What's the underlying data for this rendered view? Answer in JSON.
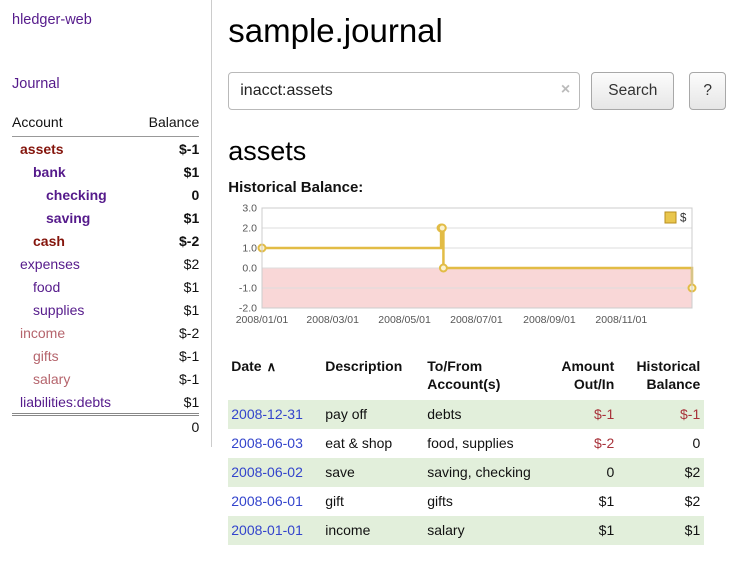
{
  "palette": {
    "link_purple": "#551a8b",
    "link_blue": "#3344cc",
    "negative_dark": "#84150c",
    "negative_soft": "#b5646c",
    "negative_register": "#a8323a",
    "row_green": "#e2efdb"
  },
  "header": {
    "app_title": "hledger-web"
  },
  "sidebar": {
    "nav": [
      {
        "label": "Journal"
      }
    ],
    "accounts": {
      "col_account": "Account",
      "col_balance": "Balance",
      "rows": [
        {
          "name": "assets",
          "balance": "$-1"
        },
        {
          "name": "bank",
          "balance": "$1"
        },
        {
          "name": "checking",
          "balance": "0"
        },
        {
          "name": "saving",
          "balance": "$1"
        },
        {
          "name": "cash",
          "balance": "$-2"
        },
        {
          "name": "expenses",
          "balance": "$2"
        },
        {
          "name": "food",
          "balance": "$1"
        },
        {
          "name": "supplies",
          "balance": "$1"
        },
        {
          "name": "income",
          "balance": "$-2"
        },
        {
          "name": "gifts",
          "balance": "$-1"
        },
        {
          "name": "salary",
          "balance": "$-1"
        },
        {
          "name": "liabilities:debts",
          "balance": "$1"
        }
      ],
      "total": "0"
    }
  },
  "main": {
    "title": "sample.journal",
    "search": {
      "value": "inacct:assets",
      "clear_icon": "×",
      "search_button": "Search",
      "help_button": "?"
    },
    "account_heading": "assets",
    "chart_title": "Historical Balance:",
    "register": {
      "headers": {
        "date": "Date",
        "sort_icon": "∧",
        "description": "Description",
        "tofrom_line1": "To/From",
        "tofrom_line2": "Account(s)",
        "amount_line1": "Amount",
        "amount_line2": "Out/In",
        "balance_line1": "Historical",
        "balance_line2": "Balance"
      },
      "rows": [
        {
          "date": "2008-12-31",
          "description": "pay off",
          "accounts": "debts",
          "amount": "$-1",
          "balance": "$-1"
        },
        {
          "date": "2008-06-03",
          "description": "eat & shop",
          "accounts": "food, supplies",
          "amount": "$-2",
          "balance": "0"
        },
        {
          "date": "2008-06-02",
          "description": "save",
          "accounts": "saving, checking",
          "amount": "0",
          "balance": "$2"
        },
        {
          "date": "2008-06-01",
          "description": "gift",
          "accounts": "gifts",
          "amount": "$1",
          "balance": "$2"
        },
        {
          "date": "2008-01-01",
          "description": "income",
          "accounts": "salary",
          "amount": "$1",
          "balance": "$1"
        }
      ]
    }
  },
  "chart_data": {
    "type": "line",
    "step": true,
    "title": "Historical Balance:",
    "legend": [
      {
        "label": "$",
        "color": "#e9c64d"
      }
    ],
    "ylim": [
      -2,
      3
    ],
    "y_ticks": [
      "3.0",
      "2.0",
      "1.0",
      "0.0",
      "-1.0",
      "-2.0"
    ],
    "x_ticks": [
      "2008/01/01",
      "2008/03/01",
      "2008/05/01",
      "2008/07/01",
      "2008/09/01",
      "2008/11/01"
    ],
    "x_domain": [
      "2008-01-01",
      "2008-12-31"
    ],
    "line_color": "#e2bc45",
    "marker_fill": "#fbf2cf",
    "negative_fill": "#f9d7d7",
    "grid_color": "#dddddd",
    "series": [
      {
        "name": "$",
        "points": [
          [
            "2008-01-01",
            1
          ],
          [
            "2008-06-01",
            2
          ],
          [
            "2008-06-02",
            2
          ],
          [
            "2008-06-03",
            0
          ],
          [
            "2008-12-31",
            -1
          ]
        ]
      }
    ]
  }
}
